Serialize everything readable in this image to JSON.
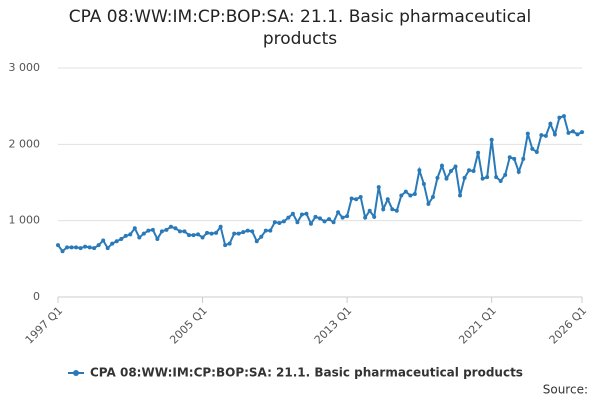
{
  "chart_data": {
    "type": "line",
    "title": "CPA 08:WW:IM:CP:BOP:SA: 21.1. Basic pharmaceutical products",
    "source": "Source:",
    "categories": [
      "1997 Q1",
      null,
      null,
      null,
      null,
      null,
      null,
      null,
      null,
      null,
      null,
      null,
      null,
      null,
      null,
      null,
      null,
      null,
      null,
      null,
      null,
      null,
      null,
      null,
      null,
      null,
      null,
      null,
      null,
      null,
      null,
      null,
      "2005 Q1",
      null,
      null,
      null,
      null,
      null,
      null,
      null,
      null,
      null,
      null,
      null,
      null,
      null,
      null,
      null,
      null,
      null,
      null,
      null,
      null,
      null,
      null,
      null,
      null,
      null,
      null,
      null,
      null,
      null,
      null,
      null,
      "2013 Q1",
      null,
      null,
      null,
      null,
      null,
      null,
      null,
      null,
      null,
      null,
      null,
      null,
      null,
      null,
      null,
      null,
      null,
      null,
      null,
      null,
      null,
      null,
      null,
      null,
      null,
      null,
      null,
      null,
      null,
      null,
      null,
      "2021 Q1",
      null,
      null,
      null,
      null,
      null,
      null,
      null,
      null,
      null,
      null,
      null,
      null,
      null,
      null,
      null,
      null,
      null,
      null,
      null,
      "2026 Q1"
    ],
    "series": [
      {
        "name": "CPA 08:WW:IM:CP:BOP:SA: 21.1. Basic pharmaceutical products",
        "color": "#2a7ab9",
        "values": [
          680,
          600,
          650,
          650,
          650,
          640,
          660,
          650,
          640,
          680,
          740,
          640,
          700,
          730,
          760,
          800,
          820,
          900,
          780,
          830,
          870,
          880,
          760,
          860,
          880,
          920,
          900,
          860,
          860,
          810,
          810,
          820,
          780,
          840,
          830,
          840,
          920,
          680,
          700,
          830,
          830,
          850,
          870,
          860,
          730,
          790,
          870,
          870,
          980,
          970,
          990,
          1040,
          1090,
          980,
          1080,
          1090,
          960,
          1050,
          1030,
          990,
          1020,
          980,
          1110,
          1040,
          1060,
          1290,
          1280,
          1310,
          1040,
          1130,
          1050,
          1440,
          1150,
          1280,
          1150,
          1130,
          1330,
          1380,
          1330,
          1350,
          1660,
          1480,
          1220,
          1310,
          1560,
          1720,
          1550,
          1650,
          1710,
          1330,
          1560,
          1660,
          1650,
          1890,
          1550,
          1570,
          2060,
          1570,
          1520,
          1600,
          1830,
          1810,
          1640,
          1810,
          2140,
          1940,
          1900,
          2120,
          2110,
          2270,
          2130,
          2350,
          2370,
          2150,
          2170,
          2130,
          2160
        ]
      }
    ],
    "ylim": [
      0,
      3000
    ],
    "yticks": [
      0,
      {
        "value": 1000,
        "label": "1 000"
      },
      {
        "value": 2000,
        "label": "2 000"
      },
      {
        "value": 3000,
        "label": "3 000"
      }
    ],
    "grid": true
  }
}
